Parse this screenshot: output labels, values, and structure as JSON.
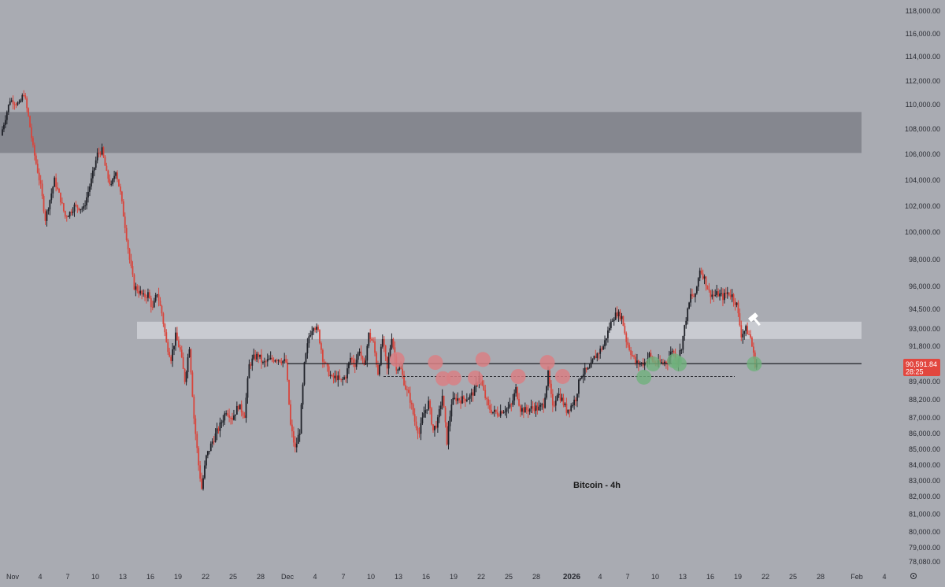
{
  "chart_data": {
    "type": "candlestick",
    "annotation_label": "Bitcoin - 4h",
    "colors": {
      "background": "#a9abb2",
      "up_candle": "#1f2128",
      "down_candle": "#d8453c",
      "resistance_zone": "#85878f",
      "support_zone": "#c9cbd1",
      "horizontal_line": "#1e1f24",
      "red_markers": "#d97f84",
      "green_markers": "#6fb27c",
      "last_price_box": "#e2473f"
    },
    "y_axis": {
      "range": [
        77700,
        118400
      ],
      "tick_labels": [
        "118,000.00",
        "116,000.00",
        "114,000.00",
        "112,000.00",
        "110,000.00",
        "108,000.00",
        "106,000.00",
        "104,000.00",
        "102,000.00",
        "100,000.00",
        "98,000.00",
        "96,000.00",
        "94,500.00",
        "93,000.00",
        "91,800.00",
        "89,400.00",
        "88,200.00",
        "87,000.00",
        "86,000.00",
        "85,000.00",
        "84,000.00",
        "83,000.00",
        "82,000.00",
        "81,000.00",
        "80,000.00",
        "79,000.00",
        "78,080.00"
      ]
    },
    "x_axis": {
      "tick_labels": [
        "Nov",
        "4",
        "7",
        "10",
        "13",
        "16",
        "19",
        "22",
        "25",
        "28",
        "Dec",
        "4",
        "7",
        "10",
        "13",
        "16",
        "19",
        "22",
        "25",
        "28",
        "2026",
        "4",
        "7",
        "10",
        "13",
        "16",
        "19",
        "22",
        "25",
        "28",
        "Feb",
        "4"
      ],
      "year_label": "2026"
    },
    "last_price": {
      "value_label": "90,591.84",
      "countdown_label": "28:25"
    },
    "zones": [
      {
        "name": "resistance",
        "from": 106100,
        "to": 109400
      },
      {
        "name": "support",
        "from": 92300,
        "to": 93550
      }
    ],
    "levels": [
      {
        "name": "solid-support-line",
        "value": 90620
      },
      {
        "name": "dashed-line",
        "value": 89750
      }
    ],
    "path_anchors": [
      {
        "date": "2025-10-31T00:00",
        "price": 107500
      },
      {
        "date": "2025-11-01T00:00",
        "price": 110400
      },
      {
        "date": "2025-11-02T00:00",
        "price": 110000
      },
      {
        "date": "2025-11-02T12:00",
        "price": 111000
      },
      {
        "date": "2025-11-03T00:00",
        "price": 109000
      },
      {
        "date": "2025-11-03T12:00",
        "price": 106500
      },
      {
        "date": "2025-11-04T08:00",
        "price": 103500
      },
      {
        "date": "2025-11-04T20:00",
        "price": 101000
      },
      {
        "date": "2025-11-05T08:00",
        "price": 102500
      },
      {
        "date": "2025-11-05T20:00",
        "price": 104000
      },
      {
        "date": "2025-11-06T12:00",
        "price": 102500
      },
      {
        "date": "2025-11-07T00:00",
        "price": 101200
      },
      {
        "date": "2025-11-07T12:00",
        "price": 101500
      },
      {
        "date": "2025-11-08T00:00",
        "price": 102000
      },
      {
        "date": "2025-11-09T00:00",
        "price": 101800
      },
      {
        "date": "2025-11-09T20:00",
        "price": 104000
      },
      {
        "date": "2025-11-10T12:00",
        "price": 106000
      },
      {
        "date": "2025-11-11T00:00",
        "price": 106300
      },
      {
        "date": "2025-11-11T12:00",
        "price": 104500
      },
      {
        "date": "2025-11-12T00:00",
        "price": 103500
      },
      {
        "date": "2025-11-12T12:00",
        "price": 104800
      },
      {
        "date": "2025-11-13T00:00",
        "price": 103000
      },
      {
        "date": "2025-11-13T12:00",
        "price": 100500
      },
      {
        "date": "2025-11-14T00:00",
        "price": 98000
      },
      {
        "date": "2025-11-14T12:00",
        "price": 96000
      },
      {
        "date": "2025-11-15T00:00",
        "price": 95700
      },
      {
        "date": "2025-11-15T12:00",
        "price": 95300
      },
      {
        "date": "2025-11-16T00:00",
        "price": 95500
      },
      {
        "date": "2025-11-16T12:00",
        "price": 94500
      },
      {
        "date": "2025-11-17T00:00",
        "price": 95600
      },
      {
        "date": "2025-11-17T12:00",
        "price": 94200
      },
      {
        "date": "2025-11-18T00:00",
        "price": 92000
      },
      {
        "date": "2025-11-18T12:00",
        "price": 91000
      },
      {
        "date": "2025-11-19T00:00",
        "price": 92500
      },
      {
        "date": "2025-11-19T12:00",
        "price": 91500
      },
      {
        "date": "2025-11-20T00:00",
        "price": 89500
      },
      {
        "date": "2025-11-20T12:00",
        "price": 91800
      },
      {
        "date": "2025-11-21T00:00",
        "price": 87000
      },
      {
        "date": "2025-11-21T12:00",
        "price": 84000
      },
      {
        "date": "2025-11-21T20:00",
        "price": 82500
      },
      {
        "date": "2025-11-22T08:00",
        "price": 84500
      },
      {
        "date": "2025-11-23T00:00",
        "price": 85500
      },
      {
        "date": "2025-11-23T20:00",
        "price": 86500
      },
      {
        "date": "2025-11-24T12:00",
        "price": 87500
      },
      {
        "date": "2025-11-25T04:00",
        "price": 87000
      },
      {
        "date": "2025-11-25T20:00",
        "price": 87800
      },
      {
        "date": "2025-11-26T12:00",
        "price": 87200
      },
      {
        "date": "2025-11-27T00:00",
        "price": 90500
      },
      {
        "date": "2025-11-27T12:00",
        "price": 91000
      },
      {
        "date": "2025-11-28T00:00",
        "price": 91200
      },
      {
        "date": "2025-11-28T12:00",
        "price": 90600
      },
      {
        "date": "2025-11-29T00:00",
        "price": 90800
      },
      {
        "date": "2025-11-30T00:00",
        "price": 91000
      },
      {
        "date": "2025-12-01T00:00",
        "price": 90700
      },
      {
        "date": "2025-12-01T12:00",
        "price": 86500
      },
      {
        "date": "2025-12-02T00:00",
        "price": 85000
      },
      {
        "date": "2025-12-02T12:00",
        "price": 86200
      },
      {
        "date": "2025-12-03T00:00",
        "price": 90500
      },
      {
        "date": "2025-12-03T12:00",
        "price": 92500
      },
      {
        "date": "2025-12-04T00:00",
        "price": 93300
      },
      {
        "date": "2025-12-04T12:00",
        "price": 92800
      },
      {
        "date": "2025-12-05T00:00",
        "price": 91000
      },
      {
        "date": "2025-12-05T12:00",
        "price": 90200
      },
      {
        "date": "2025-12-06T00:00",
        "price": 89600
      },
      {
        "date": "2025-12-06T12:00",
        "price": 89700
      },
      {
        "date": "2025-12-07T00:00",
        "price": 89400
      },
      {
        "date": "2025-12-07T12:00",
        "price": 89800
      },
      {
        "date": "2025-12-08T00:00",
        "price": 91000
      },
      {
        "date": "2025-12-08T12:00",
        "price": 90600
      },
      {
        "date": "2025-12-09T00:00",
        "price": 91600
      },
      {
        "date": "2025-12-09T12:00",
        "price": 90300
      },
      {
        "date": "2025-12-10T00:00",
        "price": 92600
      },
      {
        "date": "2025-12-10T12:00",
        "price": 92000
      },
      {
        "date": "2025-12-11T00:00",
        "price": 90000
      },
      {
        "date": "2025-12-11T12:00",
        "price": 92300
      },
      {
        "date": "2025-12-12T00:00",
        "price": 90200
      },
      {
        "date": "2025-12-12T12:00",
        "price": 92500
      },
      {
        "date": "2025-12-13T00:00",
        "price": 90400
      },
      {
        "date": "2025-12-13T12:00",
        "price": 90200
      },
      {
        "date": "2025-12-14T00:00",
        "price": 89000
      },
      {
        "date": "2025-12-14T12:00",
        "price": 88200
      },
      {
        "date": "2025-12-15T00:00",
        "price": 86800
      },
      {
        "date": "2025-12-15T12:00",
        "price": 86000
      },
      {
        "date": "2025-12-16T00:00",
        "price": 87300
      },
      {
        "date": "2025-12-16T12:00",
        "price": 88000
      },
      {
        "date": "2025-12-17T00:00",
        "price": 86200
      },
      {
        "date": "2025-12-17T12:00",
        "price": 86800
      },
      {
        "date": "2025-12-18T00:00",
        "price": 88500
      },
      {
        "date": "2025-12-18T12:00",
        "price": 85500
      },
      {
        "date": "2025-12-19T00:00",
        "price": 88000
      },
      {
        "date": "2025-12-19T12:00",
        "price": 88300
      },
      {
        "date": "2025-12-20T00:00",
        "price": 88200
      },
      {
        "date": "2025-12-21T00:00",
        "price": 88400
      },
      {
        "date": "2025-12-21T12:00",
        "price": 88800
      },
      {
        "date": "2025-12-22T00:00",
        "price": 89800
      },
      {
        "date": "2025-12-22T12:00",
        "price": 88700
      },
      {
        "date": "2025-12-23T00:00",
        "price": 87700
      },
      {
        "date": "2025-12-23T12:00",
        "price": 87400
      },
      {
        "date": "2025-12-24T00:00",
        "price": 87300
      },
      {
        "date": "2025-12-24T12:00",
        "price": 87500
      },
      {
        "date": "2025-12-25T00:00",
        "price": 87600
      },
      {
        "date": "2025-12-25T12:00",
        "price": 87800
      },
      {
        "date": "2025-12-26T00:00",
        "price": 88900
      },
      {
        "date": "2025-12-26T12:00",
        "price": 87600
      },
      {
        "date": "2025-12-27T00:00",
        "price": 87500
      },
      {
        "date": "2025-12-28T00:00",
        "price": 87700
      },
      {
        "date": "2025-12-28T12:00",
        "price": 87600
      },
      {
        "date": "2025-12-29T00:00",
        "price": 87900
      },
      {
        "date": "2025-12-29T12:00",
        "price": 89900
      },
      {
        "date": "2025-12-30T00:00",
        "price": 87600
      },
      {
        "date": "2025-12-30T12:00",
        "price": 88700
      },
      {
        "date": "2025-12-31T00:00",
        "price": 88200
      },
      {
        "date": "2025-12-31T12:00",
        "price": 87500
      },
      {
        "date": "2026-01-01T00:00",
        "price": 87800
      },
      {
        "date": "2026-01-01T12:00",
        "price": 88300
      },
      {
        "date": "2026-01-02T00:00",
        "price": 89800
      },
      {
        "date": "2026-01-02T12:00",
        "price": 90100
      },
      {
        "date": "2026-01-03T00:00",
        "price": 90200
      },
      {
        "date": "2026-01-03T12:00",
        "price": 91000
      },
      {
        "date": "2026-01-04T00:00",
        "price": 91400
      },
      {
        "date": "2026-01-04T12:00",
        "price": 91800
      },
      {
        "date": "2026-01-05T00:00",
        "price": 92800
      },
      {
        "date": "2026-01-05T12:00",
        "price": 93800
      },
      {
        "date": "2026-01-06T00:00",
        "price": 94200
      },
      {
        "date": "2026-01-06T12:00",
        "price": 93900
      },
      {
        "date": "2026-01-07T00:00",
        "price": 92200
      },
      {
        "date": "2026-01-07T12:00",
        "price": 91400
      },
      {
        "date": "2026-01-08T00:00",
        "price": 90700
      },
      {
        "date": "2026-01-08T12:00",
        "price": 90600
      },
      {
        "date": "2026-01-09T00:00",
        "price": 90700
      },
      {
        "date": "2026-01-09T12:00",
        "price": 91200
      },
      {
        "date": "2026-01-10T00:00",
        "price": 90700
      },
      {
        "date": "2026-01-10T12:00",
        "price": 90600
      },
      {
        "date": "2026-01-11T00:00",
        "price": 90700
      },
      {
        "date": "2026-01-11T12:00",
        "price": 90800
      },
      {
        "date": "2026-01-12T00:00",
        "price": 91600
      },
      {
        "date": "2026-01-12T12:00",
        "price": 90700
      },
      {
        "date": "2026-01-13T00:00",
        "price": 91800
      },
      {
        "date": "2026-01-13T12:00",
        "price": 93800
      },
      {
        "date": "2026-01-14T00:00",
        "price": 95400
      },
      {
        "date": "2026-01-14T12:00",
        "price": 95300
      },
      {
        "date": "2026-01-15T00:00",
        "price": 97300
      },
      {
        "date": "2026-01-15T12:00",
        "price": 96600
      },
      {
        "date": "2026-01-16T00:00",
        "price": 95600
      },
      {
        "date": "2026-01-16T12:00",
        "price": 95400
      },
      {
        "date": "2026-01-17T00:00",
        "price": 95500
      },
      {
        "date": "2026-01-17T12:00",
        "price": 95300
      },
      {
        "date": "2026-01-18T00:00",
        "price": 95600
      },
      {
        "date": "2026-01-18T12:00",
        "price": 95400
      },
      {
        "date": "2026-01-19T00:00",
        "price": 94800
      },
      {
        "date": "2026-01-19T12:00",
        "price": 92600
      },
      {
        "date": "2026-01-20T00:00",
        "price": 93000
      },
      {
        "date": "2026-01-20T12:00",
        "price": 92400
      },
      {
        "date": "2026-01-21T00:00",
        "price": 90600
      }
    ],
    "red_markers": [
      {
        "date": "2025-12-13T00:00",
        "price": 90900
      },
      {
        "date": "2025-12-17T04:00",
        "price": 90700
      },
      {
        "date": "2025-12-18T00:00",
        "price": 89600
      },
      {
        "date": "2025-12-19T04:00",
        "price": 89650
      },
      {
        "date": "2025-12-21T12:00",
        "price": 89650
      },
      {
        "date": "2025-12-22T08:00",
        "price": 90900
      },
      {
        "date": "2025-12-26T04:00",
        "price": 89750
      },
      {
        "date": "2025-12-29T08:00",
        "price": 90700
      },
      {
        "date": "2025-12-31T00:00",
        "price": 89750
      }
    ],
    "green_markers": [
      {
        "date": "2026-01-08T20:00",
        "price": 89700
      },
      {
        "date": "2026-01-09T20:00",
        "price": 90600
      },
      {
        "date": "2026-01-12T04:00",
        "price": 90800
      },
      {
        "date": "2026-01-12T16:00",
        "price": 90600
      },
      {
        "date": "2026-01-20T20:00",
        "price": 90600
      }
    ]
  }
}
